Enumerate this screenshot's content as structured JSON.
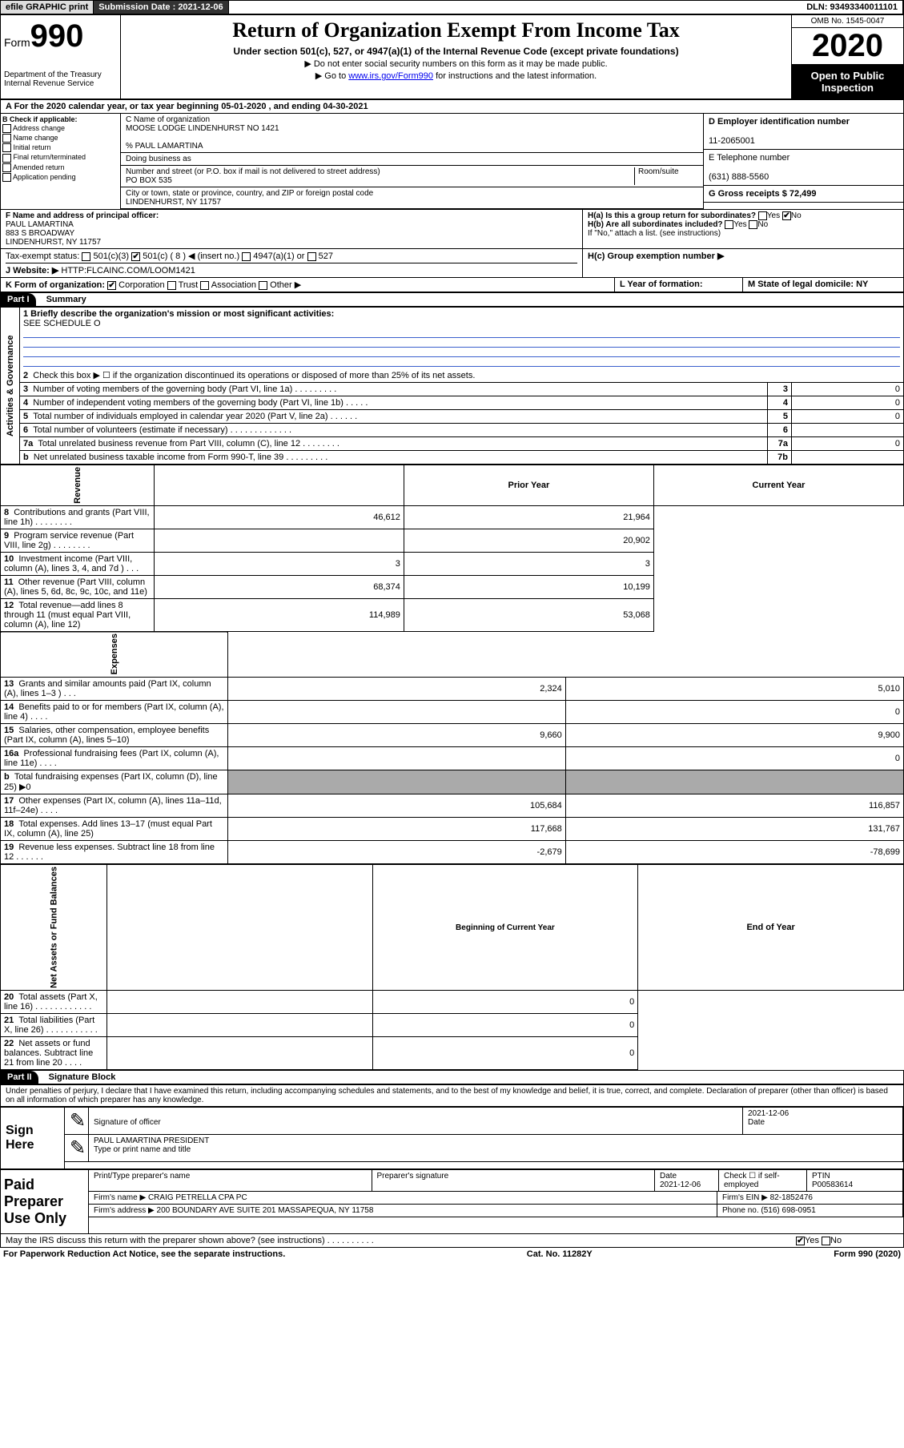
{
  "topbar": {
    "efile": "efile GRAPHIC print",
    "submission": "Submission Date : 2021-12-06",
    "dln": "DLN: 93493340011101"
  },
  "header": {
    "form_label": "Form",
    "form_num": "990",
    "dept": "Department of the Treasury Internal Revenue Service",
    "title": "Return of Organization Exempt From Income Tax",
    "subtitle": "Under section 501(c), 527, or 4947(a)(1) of the Internal Revenue Code (except private foundations)",
    "sub2a": "▶ Do not enter social security numbers on this form as it may be made public.",
    "sub2b_prefix": "▶ Go to ",
    "sub2b_link": "www.irs.gov/Form990",
    "sub2b_suffix": " for instructions and the latest information.",
    "omb": "OMB No. 1545-0047",
    "year": "2020",
    "inspection": "Open to Public Inspection"
  },
  "row_a": "A For the 2020 calendar year, or tax year beginning 05-01-2020   , and ending 04-30-2021",
  "col_b": {
    "label": "B Check if applicable:",
    "opts": [
      "Address change",
      "Name change",
      "Initial return",
      "Final return/terminated",
      "Amended return",
      "Application pending"
    ]
  },
  "col_c": {
    "name_label": "C Name of organization",
    "name": "MOOSE LODGE LINDENHURST NO 1421",
    "care_of": "% PAUL LAMARTINA",
    "dba_label": "Doing business as",
    "addr_label": "Number and street (or P.O. box if mail is not delivered to street address)",
    "room_label": "Room/suite",
    "addr": "PO BOX 535",
    "city_label": "City or town, state or province, country, and ZIP or foreign postal code",
    "city": "LINDENHURST, NY  11757"
  },
  "col_d": {
    "ein_label": "D Employer identification number",
    "ein": "11-2065001",
    "tel_label": "E Telephone number",
    "tel": "(631) 888-5560",
    "gross_label": "G Gross receipts $ 72,499"
  },
  "fgh": {
    "f_label": "F  Name and address of principal officer:",
    "f_name": "PAUL LAMARTINA",
    "f_addr1": "883 S BROADWAY",
    "f_addr2": "LINDENHURST, NY  11757",
    "ha": "H(a)  Is this a group return for subordinates?",
    "hb": "H(b)  Are all subordinates included?",
    "hb_note": "If \"No,\" attach a list. (see instructions)",
    "hc": "H(c)  Group exemption number ▶",
    "tax_status": "Tax-exempt status:",
    "ts_501c3": "501(c)(3)",
    "ts_501c": "501(c) ( 8 ) ◀ (insert no.)",
    "ts_4947": "4947(a)(1) or",
    "ts_527": "527",
    "website_label": "J Website: ▶",
    "website": "HTTP:FLCAINC.COM/LOOM1421"
  },
  "klm": {
    "k": "K Form of organization:",
    "k_corp": "Corporation",
    "k_trust": "Trust",
    "k_assoc": "Association",
    "k_other": "Other ▶",
    "l": "L Year of formation:",
    "m": "M State of legal domicile: NY"
  },
  "part1": {
    "label": "Part I",
    "title": "Summary",
    "q1": "1  Briefly describe the organization's mission or most significant activities:",
    "q1_ans": "SEE SCHEDULE O",
    "q2": "Check this box ▶ ☐  if the organization discontinued its operations or disposed of more than 25% of its net assets.",
    "rows_ag": [
      {
        "n": "3",
        "t": "Number of voting members of the governing body (Part VI, line 1a)   .   .   .   .   .   .   .   .   .",
        "rn": "3",
        "v": "0"
      },
      {
        "n": "4",
        "t": "Number of independent voting members of the governing body (Part VI, line 1b)   .   .   .   .   .",
        "rn": "4",
        "v": "0"
      },
      {
        "n": "5",
        "t": "Total number of individuals employed in calendar year 2020 (Part V, line 2a)   .   .   .   .   .   .",
        "rn": "5",
        "v": "0"
      },
      {
        "n": "6",
        "t": "Total number of volunteers (estimate if necessary)   .   .   .   .   .   .   .   .   .   .   .   .   .",
        "rn": "6",
        "v": ""
      },
      {
        "n": "7a",
        "t": "Total unrelated business revenue from Part VIII, column (C), line 12   .   .   .   .   .   .   .   .",
        "rn": "7a",
        "v": "0"
      },
      {
        "n": "b",
        "t": "Net unrelated business taxable income from Form 990-T, line 39   .   .   .   .   .   .   .   .   .",
        "rn": "7b",
        "v": ""
      }
    ],
    "hdr_prior": "Prior Year",
    "hdr_current": "Current Year",
    "vert_ag": "Activities & Governance",
    "vert_rev": "Revenue",
    "vert_exp": "Expenses",
    "vert_na": "Net Assets or Fund Balances",
    "rows_rev": [
      {
        "n": "8",
        "t": "Contributions and grants (Part VIII, line 1h)   .   .   .   .   .   .   .   .",
        "p": "46,612",
        "c": "21,964"
      },
      {
        "n": "9",
        "t": "Program service revenue (Part VIII, line 2g)   .   .   .   .   .   .   .   .",
        "p": "",
        "c": "20,902"
      },
      {
        "n": "10",
        "t": "Investment income (Part VIII, column (A), lines 3, 4, and 7d )   .   .   .",
        "p": "3",
        "c": "3"
      },
      {
        "n": "11",
        "t": "Other revenue (Part VIII, column (A), lines 5, 6d, 8c, 9c, 10c, and 11e)",
        "p": "68,374",
        "c": "10,199"
      },
      {
        "n": "12",
        "t": "Total revenue—add lines 8 through 11 (must equal Part VIII, column (A), line 12)",
        "p": "114,989",
        "c": "53,068"
      }
    ],
    "rows_exp": [
      {
        "n": "13",
        "t": "Grants and similar amounts paid (Part IX, column (A), lines 1–3 )   .   .   .",
        "p": "2,324",
        "c": "5,010"
      },
      {
        "n": "14",
        "t": "Benefits paid to or for members (Part IX, column (A), line 4)   .   .   .   .",
        "p": "",
        "c": "0"
      },
      {
        "n": "15",
        "t": "Salaries, other compensation, employee benefits (Part IX, column (A), lines 5–10)",
        "p": "9,660",
        "c": "9,900"
      },
      {
        "n": "16a",
        "t": "Professional fundraising fees (Part IX, column (A), line 11e)   .   .   .   .",
        "p": "",
        "c": "0"
      },
      {
        "n": "b",
        "t": "Total fundraising expenses (Part IX, column (D), line 25) ▶0",
        "p": "shade",
        "c": "shade"
      },
      {
        "n": "17",
        "t": "Other expenses (Part IX, column (A), lines 11a–11d, 11f–24e)   .   .   .   .",
        "p": "105,684",
        "c": "116,857"
      },
      {
        "n": "18",
        "t": "Total expenses. Add lines 13–17 (must equal Part IX, column (A), line 25)",
        "p": "117,668",
        "c": "131,767"
      },
      {
        "n": "19",
        "t": "Revenue less expenses. Subtract line 18 from line 12   .   .   .   .   .   .",
        "p": "-2,679",
        "c": "-78,699"
      }
    ],
    "hdr_begin": "Beginning of Current Year",
    "hdr_end": "End of Year",
    "rows_na": [
      {
        "n": "20",
        "t": "Total assets (Part X, line 16)   .   .   .   .   .   .   .   .   .   .   .   .",
        "p": "",
        "c": "0"
      },
      {
        "n": "21",
        "t": "Total liabilities (Part X, line 26)   .   .   .   .   .   .   .   .   .   .   .",
        "p": "",
        "c": "0"
      },
      {
        "n": "22",
        "t": "Net assets or fund balances. Subtract line 21 from line 20   .   .   .   .",
        "p": "",
        "c": "0"
      }
    ]
  },
  "part2": {
    "label": "Part II",
    "title": "Signature Block",
    "perjury": "Under penalties of perjury, I declare that I have examined this return, including accompanying schedules and statements, and to the best of my knowledge and belief, it is true, correct, and complete. Declaration of preparer (other than officer) is based on all information of which preparer has any knowledge.",
    "sign_here": "Sign Here",
    "sig_officer": "Signature of officer",
    "sig_date": "2021-12-06",
    "date_label": "Date",
    "sig_name": "PAUL LAMARTINA  PRESIDENT",
    "sig_name_label": "Type or print name and title",
    "paid_label": "Paid Preparer Use Only",
    "pp_name_label": "Print/Type preparer's name",
    "pp_sig_label": "Preparer's signature",
    "pp_date_label": "Date",
    "pp_date": "2021-12-06",
    "pp_check": "Check ☐ if self-employed",
    "pp_ptin_label": "PTIN",
    "pp_ptin": "P00583614",
    "firm_name_label": "Firm's name    ▶",
    "firm_name": "CRAIG PETRELLA CPA PC",
    "firm_ein_label": "Firm's EIN ▶",
    "firm_ein": "82-1852476",
    "firm_addr_label": "Firm's address ▶",
    "firm_addr": "200 BOUNDARY AVE SUITE 201 MASSAPEQUA, NY  11758",
    "phone_label": "Phone no.",
    "phone": "(516) 698-0951",
    "discuss": "May the IRS discuss this return with the preparer shown above? (see instructions)   .   .   .   .   .   .   .   .   .   .",
    "yes": "Yes",
    "no": "No"
  },
  "footer": {
    "left": "For Paperwork Reduction Act Notice, see the separate instructions.",
    "mid": "Cat. No. 11282Y",
    "right": "Form 990 (2020)"
  }
}
